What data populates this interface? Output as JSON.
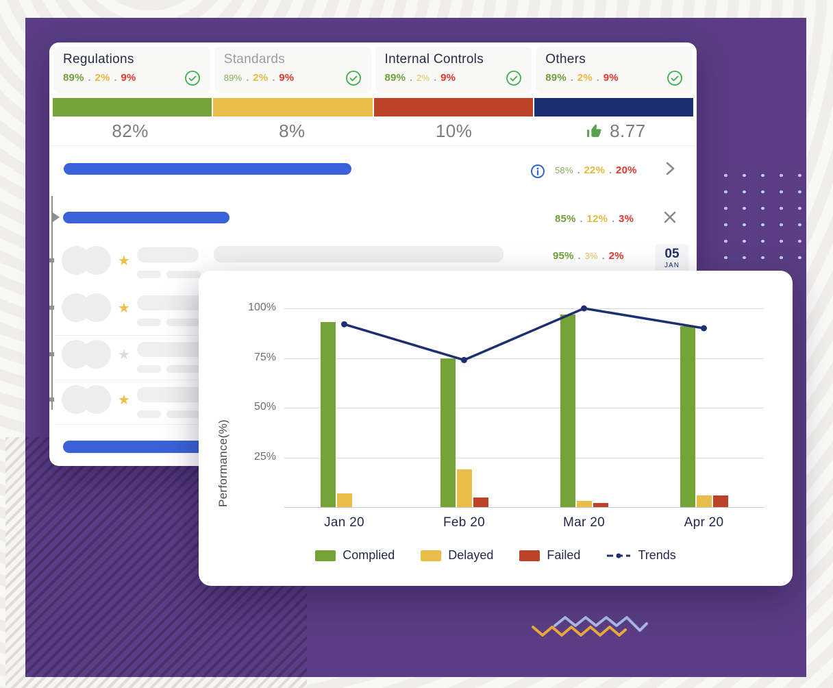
{
  "summary_cards": [
    {
      "title": "Regulations",
      "muted_title": false,
      "values": [
        {
          "t": "89%",
          "c": "g"
        },
        {
          "t": "2%",
          "c": "y"
        },
        {
          "t": "9%",
          "c": "r"
        }
      ]
    },
    {
      "title": "Standards",
      "muted_title": true,
      "values": [
        {
          "t": "89%",
          "c": "g",
          "m": true
        },
        {
          "t": "2%",
          "c": "y"
        },
        {
          "t": "9%",
          "c": "r"
        }
      ]
    },
    {
      "title": "Internal Controls",
      "muted_title": false,
      "values": [
        {
          "t": "89%",
          "c": "g"
        },
        {
          "t": "2%",
          "c": "y",
          "m": true
        },
        {
          "t": "9%",
          "c": "r"
        }
      ]
    },
    {
      "title": "Others",
      "muted_title": false,
      "values": [
        {
          "t": "89%",
          "c": "g"
        },
        {
          "t": "2%",
          "c": "y"
        },
        {
          "t": "9%",
          "c": "r"
        }
      ]
    }
  ],
  "distribution_bar": {
    "segments": [
      {
        "label": "complied",
        "color": "#76a338"
      },
      {
        "label": "delayed",
        "color": "#e9bd4a"
      },
      {
        "label": "failed",
        "color": "#bc4327"
      },
      {
        "label": "others",
        "color": "#1b2f72"
      }
    ]
  },
  "totals": {
    "complied": "82%",
    "delayed": "8%",
    "failed": "10%",
    "score": "8.77"
  },
  "progress_rows": [
    {
      "stats": [
        {
          "t": "58%",
          "c": "g",
          "m": true
        },
        {
          "t": "22%",
          "c": "y"
        },
        {
          "t": "20%",
          "c": "r"
        }
      ],
      "trailing_icon": "chevron-right"
    },
    {
      "stats": [
        {
          "t": "85%",
          "c": "g"
        },
        {
          "t": "12%",
          "c": "y"
        },
        {
          "t": "3%",
          "c": "r"
        }
      ],
      "trailing_icon": "close"
    },
    {
      "stats": [
        {
          "t": "95%",
          "c": "g"
        },
        {
          "t": "3%",
          "c": "y",
          "m": true
        },
        {
          "t": "2%",
          "c": "r"
        }
      ],
      "date": {
        "day": "05",
        "month": "JAN"
      }
    }
  ],
  "list_rows": [
    {
      "star": "active"
    },
    {
      "star": "active"
    },
    {
      "star": "inactive"
    },
    {
      "star": "active"
    }
  ],
  "chart_data": {
    "type": "bar",
    "categories": [
      "Jan 20",
      "Feb 20",
      "Mar 20",
      "Apr 20"
    ],
    "series": [
      {
        "name": "Complied",
        "type": "bar",
        "color": "#76a338",
        "values": [
          93,
          75,
          97,
          91
        ]
      },
      {
        "name": "Delayed",
        "type": "bar",
        "color": "#e9bd4a",
        "values": [
          7,
          19,
          3,
          6
        ]
      },
      {
        "name": "Failed",
        "type": "bar",
        "color": "#bc4327",
        "values": [
          0,
          5,
          2,
          6
        ]
      },
      {
        "name": "Trends",
        "type": "line",
        "color": "#1b2f72",
        "values": [
          92,
          74,
          100,
          90
        ]
      }
    ],
    "ylabel": "Performance(%)",
    "ylim": [
      0,
      100
    ],
    "yticks": [
      100,
      75,
      50,
      25
    ],
    "grid": true,
    "legend_position": "bottom"
  },
  "colors": {
    "accent_blue": "#3a62d8",
    "panel_purple": "#5a3d84",
    "thumb_green": "#59a14e"
  }
}
